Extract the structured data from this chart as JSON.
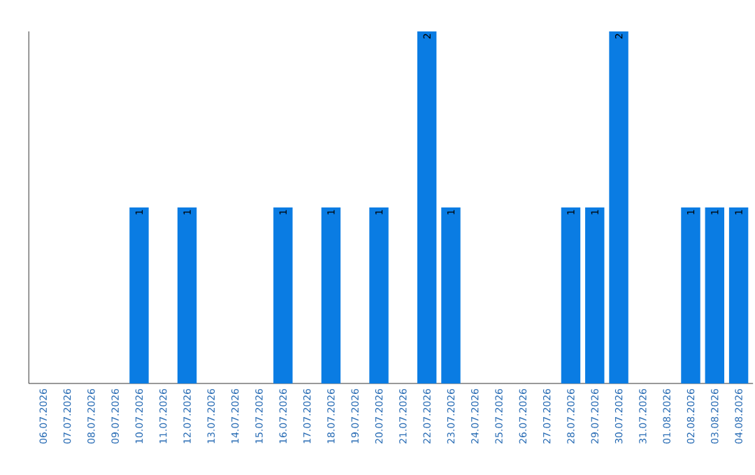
{
  "chart_data": {
    "type": "bar",
    "categories": [
      "06.07.2026",
      "07.07.2026",
      "08.07.2026",
      "09.07.2026",
      "10.07.2026",
      "11.07.2026",
      "12.07.2026",
      "13.07.2026",
      "14.07.2026",
      "15.07.2026",
      "16.07.2026",
      "17.07.2026",
      "18.07.2026",
      "19.07.2026",
      "20.07.2026",
      "21.07.2026",
      "22.07.2026",
      "23.07.2026",
      "24.07.2026",
      "25.07.2026",
      "26.07.2026",
      "27.07.2026",
      "28.07.2026",
      "29.07.2026",
      "30.07.2026",
      "31.07.2026",
      "01.08.2026",
      "02.08.2026",
      "03.08.2026",
      "04.08.2026"
    ],
    "values": [
      0,
      0,
      0,
      0,
      1,
      0,
      1,
      0,
      0,
      0,
      1,
      0,
      1,
      0,
      1,
      0,
      2,
      1,
      0,
      0,
      0,
      0,
      1,
      1,
      2,
      0,
      0,
      1,
      1,
      1
    ],
    "value_labels": [
      null,
      null,
      null,
      null,
      "1",
      null,
      "1",
      null,
      null,
      null,
      "1",
      null,
      "1",
      null,
      "1",
      null,
      "2",
      "1",
      null,
      null,
      null,
      null,
      "1",
      "1",
      "2",
      null,
      null,
      "1",
      "1",
      "1"
    ],
    "color": "#0a7ce3",
    "ylim": [
      0,
      2
    ],
    "tick_labels": "x"
  }
}
